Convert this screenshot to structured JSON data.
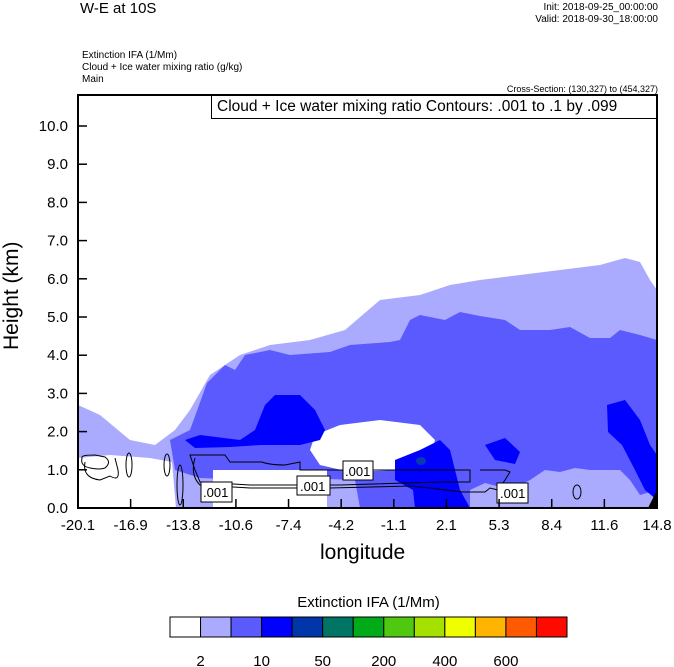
{
  "header": {
    "title": "W-E at 10S",
    "init": "Init: 2018-09-25_00:00:00",
    "valid": "Valid: 2018-09-30_18:00:00",
    "field1": "Extinction IFA   (1/Mm)",
    "field2": "Cloud + Ice water mixing ratio   (g/kg)",
    "field3": "Main",
    "cross_section": "Cross-Section: (130,327) to (454,327)"
  },
  "chart_data": {
    "type": "heatmap",
    "title": "W-E at 10S",
    "contour_title": "Cloud + Ice water mixing ratio Contours: .001 to .1 by .099",
    "xlabel": "longitude",
    "ylabel": "Height (km)",
    "xlim": [
      -20.1,
      14.8
    ],
    "ylim": [
      0.0,
      10.8
    ],
    "x_ticks": [
      "-20.1",
      "-16.9",
      "-13.8",
      "-10.6",
      "-7.4",
      "-4.2",
      "-1.1",
      "2.1",
      "5.3",
      "8.4",
      "11.6",
      "14.8"
    ],
    "y_ticks": [
      "0.0",
      "1.0",
      "2.0",
      "3.0",
      "4.0",
      "5.0",
      "6.0",
      "7.0",
      "8.0",
      "9.0",
      "10.0"
    ],
    "contour_labels": [
      ".001",
      ".001",
      ".001",
      ".001"
    ],
    "colorbar": {
      "title": "Extinction IFA  (1/Mm)",
      "colors": [
        "#ffffff",
        "#aaaaff",
        "#5a5aff",
        "#0000ff",
        "#0036aa",
        "#007566",
        "#00aa18",
        "#50c810",
        "#a4e000",
        "#f0ff00",
        "#ffb400",
        "#ff5a00",
        "#ff0a00"
      ],
      "labels": [
        "2",
        "10",
        "50",
        "200",
        "400",
        "600"
      ]
    }
  }
}
